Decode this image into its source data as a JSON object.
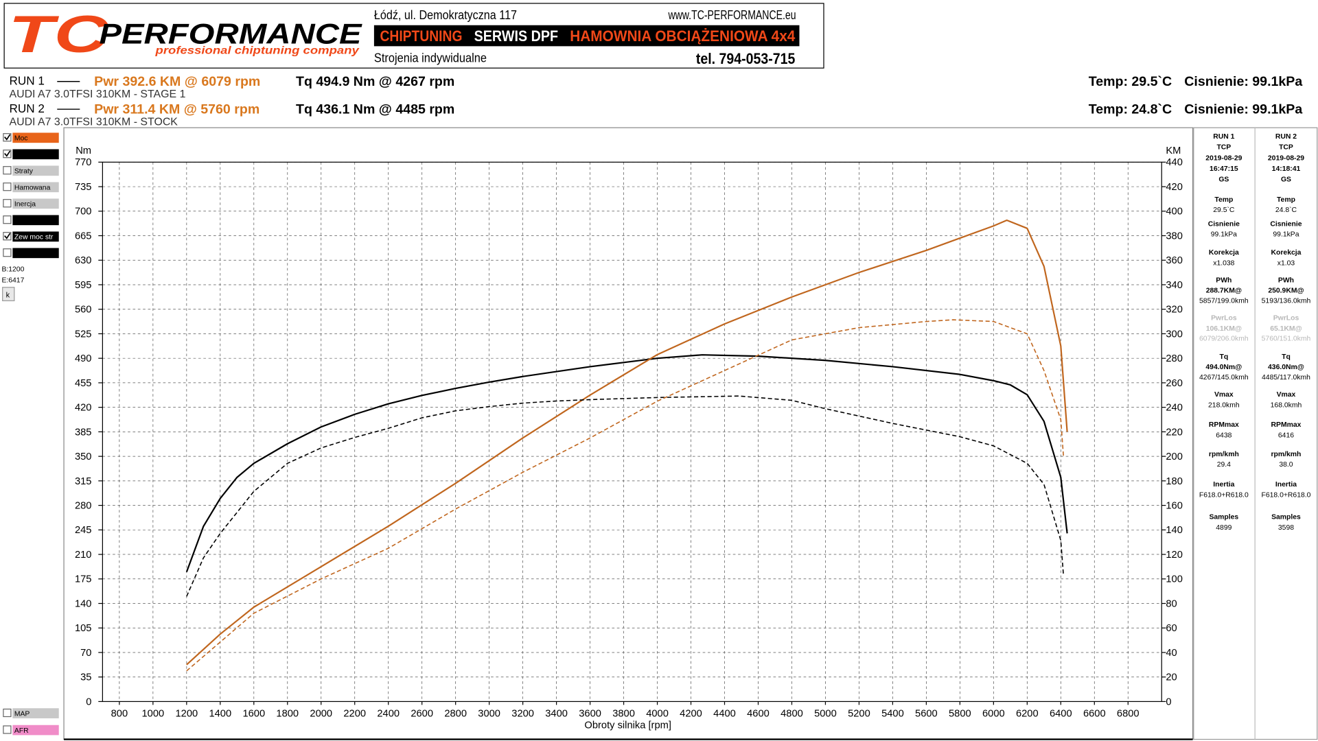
{
  "header": {
    "brand_tc": "TC",
    "brand_name": "PERFORMANCE",
    "tagline": "professional chiptuning company",
    "address": "Łódź, ul. Demokratyczna 117",
    "website": "www.TC-PERFORMANCE.eu",
    "services": [
      "CHIPTUNING",
      "SERWIS DPF",
      "HAMOWNIA OBCIĄŻENIOWA 4x4"
    ],
    "tuning": "Strojenia indywidualne",
    "phone": "tel. 794-053-715"
  },
  "runs": [
    {
      "run": "RUN 1",
      "power": "Pwr  392.6 KM @ 6079 rpm",
      "torque": "Tq 494.9 Nm @ 4267 rpm",
      "vehicle": "AUDI A7 3.0TFSI 310KM - STAGE 1",
      "temp": "Temp: 29.5`C",
      "pressure": "Cisnienie: 99.1kPa"
    },
    {
      "run": "RUN 2",
      "power": "Pwr  311.4 KM @ 5760 rpm",
      "torque": "Tq 436.1 Nm @ 4485 rpm",
      "vehicle": "AUDI A7 3.0TFSI 310KM - STOCK",
      "temp": "Temp: 24.8`C",
      "pressure": "Cisnienie: 99.1kPa"
    }
  ],
  "side_panel": {
    "checkboxes": [
      {
        "label": "Moc",
        "checked": true,
        "color": "#e8641a"
      },
      {
        "label": "",
        "checked": true,
        "color": "#000000"
      },
      {
        "label": "Straty",
        "checked": false,
        "color": "#c8c8c8"
      },
      {
        "label": "Hamowana",
        "checked": false,
        "color": "#c8c8c8"
      },
      {
        "label": "Inercja",
        "checked": false,
        "color": "#c8c8c8"
      },
      {
        "label": "",
        "checked": false,
        "color": "#000000"
      },
      {
        "label": "Zew moc str",
        "checked": true,
        "color": "#000000"
      },
      {
        "label": "",
        "checked": false,
        "color": "#000000"
      }
    ],
    "begin": "B:1200",
    "end": "E:6417",
    "button": "k",
    "bottom": [
      {
        "label": "MAP",
        "checked": false,
        "color": "#c8c8c8"
      },
      {
        "label": "AFR",
        "checked": false,
        "color": "#f08cc8"
      }
    ]
  },
  "stats": [
    {
      "head": [
        "RUN 1",
        "TCP",
        "2019-08-29",
        "16:47:15",
        "GS"
      ],
      "items": [
        {
          "label": "Temp",
          "lines": [
            "29.5`C"
          ]
        },
        {
          "label": "Cisnienie",
          "lines": [
            "99.1kPa"
          ]
        },
        {
          "label": "Korekcja",
          "lines": [
            "x1.038"
          ]
        },
        {
          "label": "PWh",
          "lines": [
            "288.7KM@",
            "5857/199.0kmh"
          ]
        },
        {
          "label": "PwrLos",
          "lines": [
            "106.1KM@",
            "6079/206.0kmh"
          ],
          "muted": true
        },
        {
          "label": "Tq",
          "lines": [
            "494.0Nm@",
            "4267/145.0kmh"
          ]
        },
        {
          "label": "Vmax",
          "lines": [
            "218.0kmh"
          ]
        },
        {
          "label": "RPMmax",
          "lines": [
            "6438"
          ]
        },
        {
          "label": "rpm/kmh",
          "lines": [
            "29.4"
          ]
        },
        {
          "label": "Inertia",
          "lines": [
            "F618.0+R618.0"
          ]
        },
        {
          "label": "Samples",
          "lines": [
            "4899"
          ]
        }
      ]
    },
    {
      "head": [
        "RUN 2",
        "TCP",
        "2019-08-29",
        "14:18:41",
        "GS"
      ],
      "items": [
        {
          "label": "Temp",
          "lines": [
            "24.8`C"
          ]
        },
        {
          "label": "Cisnienie",
          "lines": [
            "99.1kPa"
          ]
        },
        {
          "label": "Korekcja",
          "lines": [
            "x1.03"
          ]
        },
        {
          "label": "PWh",
          "lines": [
            "250.9KM@",
            "5193/136.0kmh"
          ]
        },
        {
          "label": "PwrLos",
          "lines": [
            "65.1KM@",
            "5760/151.0kmh"
          ],
          "muted": true
        },
        {
          "label": "Tq",
          "lines": [
            "436.0Nm@",
            "4485/117.0kmh"
          ]
        },
        {
          "label": "Vmax",
          "lines": [
            "168.0kmh"
          ]
        },
        {
          "label": "RPMmax",
          "lines": [
            "6416"
          ]
        },
        {
          "label": "rpm/kmh",
          "lines": [
            "38.0"
          ]
        },
        {
          "label": "Inertia",
          "lines": [
            "F618.0+R618.0"
          ]
        },
        {
          "label": "Samples",
          "lines": [
            "3598"
          ]
        }
      ]
    }
  ],
  "chart_data": {
    "type": "line",
    "x_label": "Obroty silnika [rpm]",
    "y_label": "Nm",
    "y2_label": "KM",
    "grid": true,
    "xlim": [
      700,
      7000
    ],
    "xticks": [
      800,
      1000,
      1200,
      1400,
      1600,
      1800,
      2000,
      2200,
      2400,
      2600,
      2800,
      3000,
      3200,
      3400,
      3600,
      3800,
      4000,
      4200,
      4400,
      4600,
      4800,
      5000,
      5200,
      5400,
      5600,
      5800,
      6000,
      6200,
      6400,
      6600,
      6800
    ],
    "ylim": [
      0,
      770
    ],
    "yticks": [
      0,
      35,
      70,
      105,
      140,
      175,
      210,
      245,
      280,
      315,
      350,
      385,
      420,
      455,
      490,
      525,
      560,
      595,
      630,
      665,
      700,
      735,
      770
    ],
    "y2lim": [
      0,
      440
    ],
    "y2ticks": [
      0,
      20,
      40,
      60,
      80,
      100,
      120,
      140,
      160,
      180,
      200,
      220,
      240,
      260,
      280,
      300,
      320,
      340,
      360,
      380,
      400,
      420,
      440
    ],
    "series": [
      {
        "color": "#000000",
        "dashed": false,
        "x": [
          1200,
          1300,
          1400,
          1500,
          1600,
          1800,
          2000,
          2200,
          2400,
          2600,
          2800,
          3000,
          3200,
          3400,
          3600,
          3800,
          4000,
          4267,
          4600,
          5000,
          5400,
          5800,
          6000,
          6100,
          6200,
          6300,
          6400,
          6438
        ],
        "values": [
          185,
          250,
          290,
          320,
          340,
          368,
          392,
          410,
          425,
          437,
          447,
          456,
          464,
          471,
          478,
          484,
          490,
          494.9,
          493,
          487,
          478,
          467,
          458,
          452,
          438,
          400,
          320,
          240
        ]
      },
      {
        "color": "#c0661e",
        "dashed": false,
        "axis": "y2",
        "x": [
          1200,
          1400,
          1600,
          2000,
          2400,
          2800,
          3200,
          3600,
          4000,
          4400,
          4800,
          5200,
          5600,
          6000,
          6079,
          6200,
          6300,
          6400,
          6438
        ],
        "values": [
          30,
          55,
          77,
          110,
          143,
          178,
          215,
          250,
          283,
          308,
          330,
          350,
          368,
          388,
          392.6,
          386,
          355,
          290,
          220
        ]
      },
      {
        "color": "#000000",
        "dashed": true,
        "x": [
          1200,
          1300,
          1400,
          1600,
          1800,
          2000,
          2200,
          2400,
          2600,
          2800,
          3000,
          3200,
          3400,
          3600,
          4000,
          4485,
          4800,
          5000,
          5400,
          5800,
          6000,
          6200,
          6300,
          6400,
          6416
        ],
        "values": [
          150,
          205,
          240,
          300,
          340,
          362,
          377,
          390,
          405,
          415,
          421,
          426,
          429,
          431,
          434,
          436.1,
          430,
          418,
          397,
          378,
          365,
          340,
          310,
          230,
          180
        ]
      },
      {
        "color": "#c0661e",
        "dashed": true,
        "axis": "y2",
        "x": [
          1200,
          1600,
          2000,
          2400,
          2800,
          3200,
          3600,
          4000,
          4400,
          4800,
          5200,
          5600,
          5760,
          6000,
          6200,
          6300,
          6400,
          6416
        ],
        "values": [
          25,
          72,
          100,
          125,
          157,
          187,
          215,
          245,
          270,
          295,
          305,
          310,
          311.4,
          310,
          300,
          270,
          230,
          200
        ]
      }
    ]
  }
}
